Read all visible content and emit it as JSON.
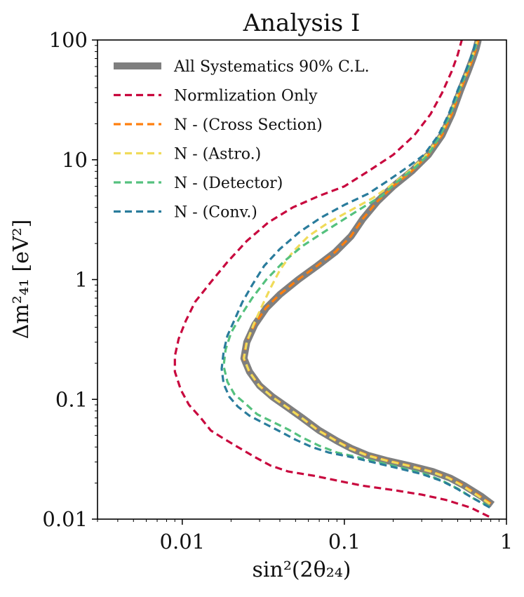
{
  "chart_data": {
    "type": "line",
    "title": "Analysis I",
    "xlabel": "sin²(2θ₂₄)",
    "ylabel": "Δm²₄₁ [eV²]",
    "xscale": "log",
    "yscale": "log",
    "xlim": [
      0.003,
      1
    ],
    "ylim": [
      0.01,
      100
    ],
    "xticks": [
      {
        "v": 0.01,
        "label": "0.01"
      },
      {
        "v": 0.1,
        "label": "0.1"
      },
      {
        "v": 1,
        "label": "1"
      }
    ],
    "yticks": [
      {
        "v": 0.01,
        "label": "0.01"
      },
      {
        "v": 0.1,
        "label": "0.1"
      },
      {
        "v": 1,
        "label": "1"
      },
      {
        "v": 10,
        "label": "10"
      },
      {
        "v": 100,
        "label": "100"
      }
    ],
    "grid": false,
    "legend_position": "upper-left",
    "series": [
      {
        "name": "All Systematics 90% C.L.",
        "color": "#7f7f7f",
        "style": "solid-thick",
        "points": [
          [
            0.82,
            0.0132
          ],
          [
            0.7,
            0.0155
          ],
          [
            0.55,
            0.019
          ],
          [
            0.45,
            0.022
          ],
          [
            0.35,
            0.025
          ],
          [
            0.25,
            0.028
          ],
          [
            0.18,
            0.031
          ],
          [
            0.14,
            0.034
          ],
          [
            0.11,
            0.039
          ],
          [
            0.09,
            0.045
          ],
          [
            0.07,
            0.055
          ],
          [
            0.055,
            0.07
          ],
          [
            0.045,
            0.085
          ],
          [
            0.036,
            0.105
          ],
          [
            0.03,
            0.13
          ],
          [
            0.026,
            0.17
          ],
          [
            0.024,
            0.22
          ],
          [
            0.025,
            0.3
          ],
          [
            0.028,
            0.42
          ],
          [
            0.033,
            0.58
          ],
          [
            0.04,
            0.75
          ],
          [
            0.052,
            1.0
          ],
          [
            0.068,
            1.3
          ],
          [
            0.088,
            1.7
          ],
          [
            0.11,
            2.3
          ],
          [
            0.13,
            3.2
          ],
          [
            0.16,
            4.5
          ],
          [
            0.2,
            6.0
          ],
          [
            0.26,
            8.0
          ],
          [
            0.33,
            11.0
          ],
          [
            0.4,
            16.0
          ],
          [
            0.46,
            24.0
          ],
          [
            0.52,
            38.0
          ],
          [
            0.58,
            55.0
          ],
          [
            0.62,
            70.0
          ],
          [
            0.65,
            85.0
          ],
          [
            0.67,
            100.0
          ]
        ]
      },
      {
        "name": "Normlization Only",
        "color": "#c8083e",
        "style": "dashed",
        "points": [
          [
            0.78,
            0.0105
          ],
          [
            0.6,
            0.0125
          ],
          [
            0.42,
            0.0145
          ],
          [
            0.3,
            0.016
          ],
          [
            0.2,
            0.0175
          ],
          [
            0.13,
            0.019
          ],
          [
            0.09,
            0.021
          ],
          [
            0.065,
            0.023
          ],
          [
            0.045,
            0.025
          ],
          [
            0.035,
            0.028
          ],
          [
            0.028,
            0.033
          ],
          [
            0.022,
            0.04
          ],
          [
            0.018,
            0.047
          ],
          [
            0.015,
            0.055
          ],
          [
            0.013,
            0.07
          ],
          [
            0.011,
            0.09
          ],
          [
            0.0098,
            0.12
          ],
          [
            0.009,
            0.17
          ],
          [
            0.009,
            0.23
          ],
          [
            0.0095,
            0.32
          ],
          [
            0.0105,
            0.45
          ],
          [
            0.012,
            0.65
          ],
          [
            0.015,
            0.95
          ],
          [
            0.019,
            1.4
          ],
          [
            0.025,
            2.1
          ],
          [
            0.034,
            3.0
          ],
          [
            0.048,
            4.0
          ],
          [
            0.07,
            5.0
          ],
          [
            0.1,
            6.0
          ],
          [
            0.14,
            8.0
          ],
          [
            0.2,
            11.0
          ],
          [
            0.27,
            16.0
          ],
          [
            0.34,
            24.0
          ],
          [
            0.4,
            36.0
          ],
          [
            0.46,
            55.0
          ],
          [
            0.5,
            75.0
          ],
          [
            0.53,
            100.0
          ]
        ]
      },
      {
        "name": "N - (Cross Section)",
        "color": "#ff7f0e",
        "style": "dashed",
        "points": [
          [
            0.8,
            0.0135
          ],
          [
            0.68,
            0.0157
          ],
          [
            0.54,
            0.0192
          ],
          [
            0.44,
            0.0222
          ],
          [
            0.34,
            0.0252
          ],
          [
            0.245,
            0.0282
          ],
          [
            0.178,
            0.0312
          ],
          [
            0.138,
            0.0343
          ],
          [
            0.108,
            0.0393
          ],
          [
            0.089,
            0.0453
          ],
          [
            0.069,
            0.0553
          ],
          [
            0.0545,
            0.0703
          ],
          [
            0.0447,
            0.0853
          ],
          [
            0.0358,
            0.1055
          ],
          [
            0.0298,
            0.131
          ],
          [
            0.0259,
            0.171
          ],
          [
            0.0239,
            0.221
          ],
          [
            0.0249,
            0.301
          ],
          [
            0.0279,
            0.421
          ],
          [
            0.0329,
            0.581
          ],
          [
            0.0399,
            0.751
          ],
          [
            0.0519,
            1.0
          ],
          [
            0.0678,
            1.3
          ],
          [
            0.0878,
            1.7
          ],
          [
            0.1098,
            2.3
          ],
          [
            0.1298,
            3.2
          ],
          [
            0.1598,
            4.5
          ],
          [
            0.1998,
            6.0
          ],
          [
            0.2598,
            8.0
          ],
          [
            0.3298,
            11.0
          ],
          [
            0.3998,
            16.0
          ],
          [
            0.4598,
            24.0
          ],
          [
            0.5198,
            38.0
          ],
          [
            0.5798,
            55.0
          ],
          [
            0.6198,
            70.0
          ],
          [
            0.6498,
            85.0
          ],
          [
            0.6698,
            100.0
          ]
        ]
      },
      {
        "name": "N - (Astro.)",
        "color": "#f0db5a",
        "style": "dashed",
        "points": [
          [
            0.79,
            0.0134
          ],
          [
            0.67,
            0.0156
          ],
          [
            0.535,
            0.019
          ],
          [
            0.44,
            0.022
          ],
          [
            0.34,
            0.025
          ],
          [
            0.245,
            0.028
          ],
          [
            0.178,
            0.031
          ],
          [
            0.138,
            0.034
          ],
          [
            0.108,
            0.039
          ],
          [
            0.089,
            0.045
          ],
          [
            0.069,
            0.055
          ],
          [
            0.0545,
            0.07
          ],
          [
            0.0447,
            0.085
          ],
          [
            0.0358,
            0.105
          ],
          [
            0.0298,
            0.13
          ],
          [
            0.0259,
            0.17
          ],
          [
            0.024,
            0.22
          ],
          [
            0.025,
            0.3
          ],
          [
            0.0275,
            0.42
          ],
          [
            0.031,
            0.6
          ],
          [
            0.035,
            0.85
          ],
          [
            0.04,
            1.2
          ],
          [
            0.048,
            1.7
          ],
          [
            0.06,
            2.3
          ],
          [
            0.08,
            3.0
          ],
          [
            0.11,
            3.8
          ],
          [
            0.15,
            4.8
          ],
          [
            0.19,
            6.0
          ],
          [
            0.25,
            8.0
          ],
          [
            0.32,
            11.0
          ],
          [
            0.39,
            16.0
          ],
          [
            0.45,
            24.0
          ],
          [
            0.51,
            38.0
          ],
          [
            0.57,
            55.0
          ],
          [
            0.61,
            70.0
          ],
          [
            0.64,
            85.0
          ],
          [
            0.66,
            100.0
          ]
        ]
      },
      {
        "name": "N - (Detector)",
        "color": "#55c17e",
        "style": "dashed",
        "points": [
          [
            0.78,
            0.0128
          ],
          [
            0.62,
            0.015
          ],
          [
            0.5,
            0.018
          ],
          [
            0.4,
            0.021
          ],
          [
            0.31,
            0.024
          ],
          [
            0.22,
            0.027
          ],
          [
            0.16,
            0.03
          ],
          [
            0.12,
            0.033
          ],
          [
            0.09,
            0.036
          ],
          [
            0.07,
            0.041
          ],
          [
            0.055,
            0.048
          ],
          [
            0.045,
            0.056
          ],
          [
            0.036,
            0.065
          ],
          [
            0.029,
            0.075
          ],
          [
            0.025,
            0.09
          ],
          [
            0.021,
            0.11
          ],
          [
            0.019,
            0.14
          ],
          [
            0.018,
            0.19
          ],
          [
            0.0185,
            0.26
          ],
          [
            0.02,
            0.36
          ],
          [
            0.023,
            0.5
          ],
          [
            0.027,
            0.7
          ],
          [
            0.033,
            1.0
          ],
          [
            0.042,
            1.4
          ],
          [
            0.055,
            1.9
          ],
          [
            0.075,
            2.5
          ],
          [
            0.1,
            3.2
          ],
          [
            0.13,
            4.0
          ],
          [
            0.17,
            5.0
          ],
          [
            0.21,
            6.5
          ],
          [
            0.27,
            8.5
          ],
          [
            0.33,
            11.0
          ],
          [
            0.39,
            16.0
          ],
          [
            0.45,
            24.0
          ],
          [
            0.51,
            38.0
          ],
          [
            0.57,
            55.0
          ],
          [
            0.61,
            70.0
          ],
          [
            0.64,
            85.0
          ],
          [
            0.66,
            100.0
          ]
        ]
      },
      {
        "name": "N - (Conv.)",
        "color": "#2a7c9c",
        "style": "dashed",
        "points": [
          [
            0.79,
            0.0125
          ],
          [
            0.63,
            0.0148
          ],
          [
            0.5,
            0.0178
          ],
          [
            0.4,
            0.0208
          ],
          [
            0.3,
            0.0238
          ],
          [
            0.21,
            0.0268
          ],
          [
            0.15,
            0.0298
          ],
          [
            0.11,
            0.033
          ],
          [
            0.08,
            0.036
          ],
          [
            0.063,
            0.04
          ],
          [
            0.05,
            0.046
          ],
          [
            0.04,
            0.054
          ],
          [
            0.032,
            0.063
          ],
          [
            0.026,
            0.073
          ],
          [
            0.022,
            0.087
          ],
          [
            0.0195,
            0.105
          ],
          [
            0.018,
            0.135
          ],
          [
            0.0175,
            0.18
          ],
          [
            0.018,
            0.25
          ],
          [
            0.019,
            0.34
          ],
          [
            0.021,
            0.46
          ],
          [
            0.0235,
            0.65
          ],
          [
            0.027,
            0.9
          ],
          [
            0.032,
            1.3
          ],
          [
            0.04,
            1.8
          ],
          [
            0.053,
            2.5
          ],
          [
            0.072,
            3.3
          ],
          [
            0.1,
            4.2
          ],
          [
            0.14,
            5.2
          ],
          [
            0.18,
            6.5
          ],
          [
            0.24,
            8.5
          ],
          [
            0.31,
            11.0
          ],
          [
            0.38,
            16.0
          ],
          [
            0.44,
            24.0
          ],
          [
            0.5,
            38.0
          ],
          [
            0.56,
            55.0
          ],
          [
            0.6,
            70.0
          ],
          [
            0.63,
            85.0
          ],
          [
            0.65,
            100.0
          ]
        ]
      }
    ]
  }
}
